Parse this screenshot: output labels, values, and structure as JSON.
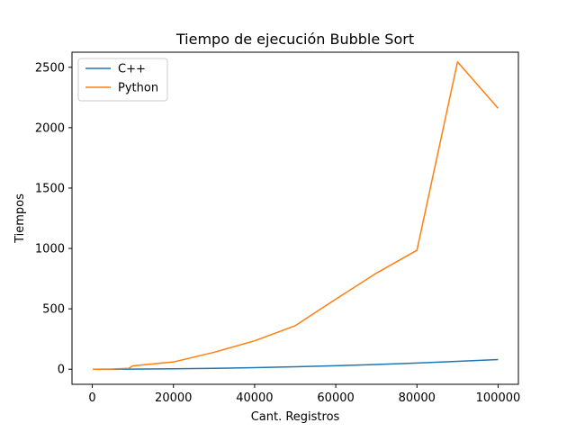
{
  "chart_data": {
    "type": "line",
    "title": "Tiempo de ejecución Bubble Sort",
    "xlabel": "Cant. Registros",
    "ylabel": "Tiempos",
    "xlim": [
      -5000,
      105000
    ],
    "ylim": [
      -125,
      2625
    ],
    "xticks": [
      0,
      20000,
      40000,
      60000,
      80000,
      100000
    ],
    "yticks": [
      0,
      500,
      1000,
      1500,
      2000,
      2500
    ],
    "grid": false,
    "legend_position": "top-left",
    "series": [
      {
        "name": "C++",
        "color": "#1f77b4",
        "x": [
          100,
          1000,
          5000,
          10000,
          20000,
          30000,
          40000,
          50000,
          60000,
          70000,
          80000,
          90000,
          100000
        ],
        "y": [
          0,
          0,
          0.2,
          0.8,
          3.2,
          7.2,
          12.8,
          20,
          28.8,
          39.2,
          51.2,
          64.8,
          80
        ]
      },
      {
        "name": "Python",
        "color": "#ff7f0e",
        "x": [
          100,
          1000,
          5000,
          9000,
          10000,
          20000,
          30000,
          40000,
          50000,
          60000,
          70000,
          80000,
          90000,
          100000
        ],
        "y": [
          0,
          0.1,
          2,
          7,
          28,
          60,
          140,
          235,
          360,
          580,
          795,
          985,
          2545,
          2160
        ]
      }
    ]
  }
}
